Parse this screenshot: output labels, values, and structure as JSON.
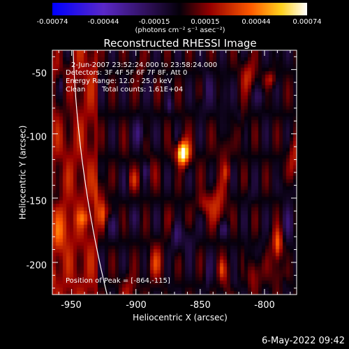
{
  "chart_data": {
    "type": "heatmap",
    "title": "Reconstructed RHESSI Image",
    "xlabel": "Heliocentric X (arcsec)",
    "ylabel": "Heliocentric Y (arcsec)",
    "xlim": [
      -965,
      -775
    ],
    "ylim": [
      -225,
      -35
    ],
    "xticks": [
      "-950",
      "-900",
      "-850",
      "-800"
    ],
    "yticks": [
      "-50",
      "-100",
      "-150",
      "-200"
    ],
    "colorbar": {
      "ticks": [
        "-0.00074",
        "-0.00044",
        "-0.00015",
        "0.00015",
        "0.00044",
        "0.00074"
      ],
      "unit": "(photons cm⁻² s⁻¹ asec⁻²)",
      "min": -0.00074,
      "max": 0.00074
    },
    "annotations": {
      "time": "2-Jun-2007 23:52:24.000 to 23:58:24.000",
      "detectors": "Detectors: 3F 4F 5F 6F 7F 8F, Att 0",
      "energy": "Energy Range: 12.0 - 25.0 keV",
      "method": "Clean",
      "counts": "Total counts: 1.61E+04",
      "peak": "Position of Peak = [-864,-115]"
    },
    "peak": [
      -864,
      -115
    ],
    "limb_color": "#ffffff"
  },
  "footer": "6-May-2022 09:42"
}
